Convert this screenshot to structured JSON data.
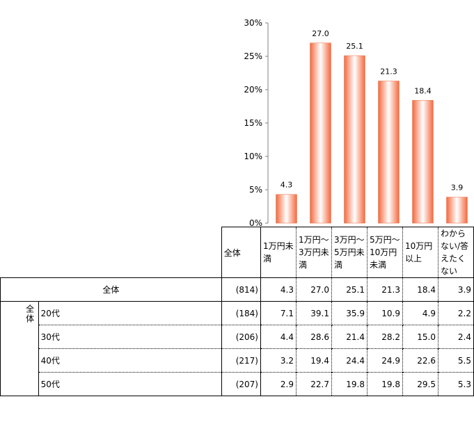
{
  "chart_data": {
    "type": "bar",
    "categories": [
      "1万円未満",
      "1万円～3万円未満",
      "3万円～5万円未満",
      "5万円～10万円未満",
      "10万円以上",
      "わからない/答えたくない"
    ],
    "values": [
      4.3,
      27.0,
      25.1,
      21.3,
      18.4,
      3.9
    ],
    "data_labels": [
      "4.3",
      "27.0",
      "25.1",
      "21.3",
      "18.4",
      "3.9"
    ],
    "yticks": [
      "0%",
      "5%",
      "10%",
      "15%",
      "20%",
      "25%",
      "30%"
    ],
    "ylim": [
      0,
      30
    ],
    "bar_color": "#f4693c"
  },
  "table": {
    "n_header": "全体",
    "total_label": "全体",
    "group_label": "全体",
    "rows": [
      {
        "label": "全体",
        "n": "(814)",
        "values": [
          "4.3",
          "27.0",
          "25.1",
          "21.3",
          "18.4",
          "3.9"
        ]
      },
      {
        "label": "20代",
        "n": "(184)",
        "values": [
          "7.1",
          "39.1",
          "35.9",
          "10.9",
          "4.9",
          "2.2"
        ]
      },
      {
        "label": "30代",
        "n": "(206)",
        "values": [
          "4.4",
          "28.6",
          "21.4",
          "28.2",
          "15.0",
          "2.4"
        ]
      },
      {
        "label": "40代",
        "n": "(217)",
        "values": [
          "3.2",
          "19.4",
          "24.4",
          "24.9",
          "22.6",
          "5.5"
        ]
      },
      {
        "label": "50代",
        "n": "(207)",
        "values": [
          "2.9",
          "22.7",
          "19.8",
          "19.8",
          "29.5",
          "5.3"
        ]
      }
    ]
  }
}
